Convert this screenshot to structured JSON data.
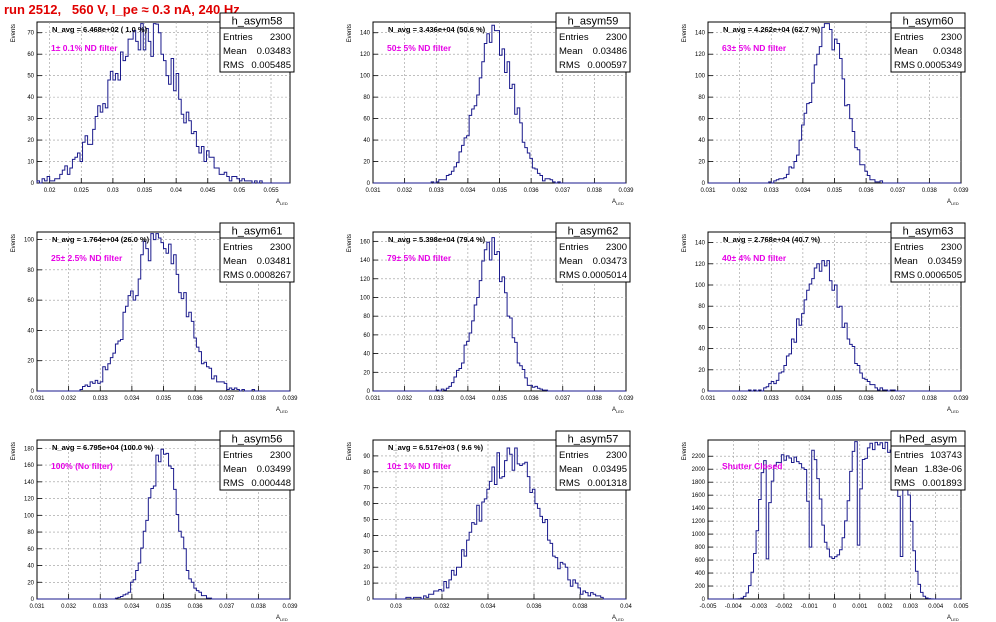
{
  "page": {
    "title": "run 2512,   560 V, I_pe ≈ 0.3 nA, 240 Hz"
  },
  "colors": {
    "histogram": "#1a1a8c",
    "annotation": "#e600e6",
    "title": "#e00000",
    "frame": "#000000"
  },
  "chart_data": [
    {
      "type": "histogram",
      "name": "h_asym58",
      "ylabel": "Events",
      "xlabel": "A",
      "xlabel_sub": "LED",
      "nominal": "N_avg = 6.468e+02 ( 1.0 %)",
      "annotation": "1± 0.1% ND filter",
      "stats": {
        "Entries": "2300",
        "Mean": "0.03483",
        "RMS": "0.005485"
      },
      "xlim": [
        0.018,
        0.058
      ],
      "ylim": [
        0,
        75
      ],
      "xticks": [
        0.02,
        0.025,
        0.03,
        0.035,
        0.04,
        0.045,
        0.05,
        0.055
      ],
      "xticklabels": [
        "0.02",
        "0.025",
        "0.03",
        "0.035",
        "0.04",
        "0.045",
        "0.05",
        "0.055"
      ],
      "yticks": [
        0,
        10,
        20,
        30,
        40,
        50,
        60,
        70
      ],
      "mean": 0.03483,
      "rms": 0.005485,
      "peak": 70
    },
    {
      "type": "histogram",
      "name": "h_asym59",
      "ylabel": "Events",
      "xlabel": "A",
      "xlabel_sub": "LED",
      "nominal": "N_avg = 3.436e+04 (50.6 %)",
      "annotation": "50± 5% ND filter",
      "stats": {
        "Entries": "2300",
        "Mean": "0.03486",
        "RMS": "0.000597"
      },
      "xlim": [
        0.031,
        0.039
      ],
      "ylim": [
        0,
        150
      ],
      "xticks": [
        0.031,
        0.032,
        0.033,
        0.034,
        0.035,
        0.036,
        0.037,
        0.038,
        0.039
      ],
      "xticklabels": [
        "0.031",
        "0.032",
        "0.033",
        "0.034",
        "0.035",
        "0.036",
        "0.037",
        "0.038",
        "0.039"
      ],
      "yticks": [
        0,
        20,
        40,
        60,
        80,
        100,
        120,
        140
      ],
      "mean": 0.03486,
      "rms": 0.000597,
      "peak": 135
    },
    {
      "type": "histogram",
      "name": "h_asym60",
      "ylabel": "Events",
      "xlabel": "A",
      "xlabel_sub": "LED",
      "nominal": "N_avg = 4.262e+04 (62.7 %)",
      "annotation": "63± 5% ND filter",
      "stats": {
        "Entries": "2300",
        "Mean": "0.0348",
        "RMS": "0.0005349"
      },
      "xlim": [
        0.031,
        0.039
      ],
      "ylim": [
        0,
        150
      ],
      "xticks": [
        0.031,
        0.032,
        0.033,
        0.034,
        0.035,
        0.036,
        0.037,
        0.038,
        0.039
      ],
      "xticklabels": [
        "0.031",
        "0.032",
        "0.033",
        "0.034",
        "0.035",
        "0.036",
        "0.037",
        "0.038",
        "0.039"
      ],
      "yticks": [
        0,
        20,
        40,
        60,
        80,
        100,
        120,
        140
      ],
      "mean": 0.0348,
      "rms": 0.0005349,
      "peak": 140
    },
    {
      "type": "histogram",
      "name": "h_asym61",
      "ylabel": "Events",
      "xlabel": "A",
      "xlabel_sub": "LED",
      "nominal": "N_avg = 1.764e+04 (26.0 %)",
      "annotation": "25± 2.5% ND filter",
      "stats": {
        "Entries": "2300",
        "Mean": "0.03481",
        "RMS": "0.0008267"
      },
      "xlim": [
        0.031,
        0.039
      ],
      "ylim": [
        0,
        105
      ],
      "xticks": [
        0.031,
        0.032,
        0.033,
        0.034,
        0.035,
        0.036,
        0.037,
        0.038,
        0.039
      ],
      "xticklabels": [
        "0.031",
        "0.032",
        "0.033",
        "0.034",
        "0.035",
        "0.036",
        "0.037",
        "0.038",
        "0.039"
      ],
      "yticks": [
        0,
        20,
        40,
        60,
        80,
        100
      ],
      "mean": 0.03481,
      "rms": 0.0008267,
      "peak": 100
    },
    {
      "type": "histogram",
      "name": "h_asym62",
      "ylabel": "Events",
      "xlabel": "A",
      "xlabel_sub": "LED",
      "nominal": "N_avg = 5.398e+04 (79.4 %)",
      "annotation": "79± 5% ND filter",
      "stats": {
        "Entries": "2300",
        "Mean": "0.03473",
        "RMS": "0.0005014"
      },
      "xlim": [
        0.031,
        0.039
      ],
      "ylim": [
        0,
        170
      ],
      "xticks": [
        0.031,
        0.032,
        0.033,
        0.034,
        0.035,
        0.036,
        0.037,
        0.038,
        0.039
      ],
      "xticklabels": [
        "0.031",
        "0.032",
        "0.033",
        "0.034",
        "0.035",
        "0.036",
        "0.037",
        "0.038",
        "0.039"
      ],
      "yticks": [
        0,
        20,
        40,
        60,
        80,
        100,
        120,
        140,
        160
      ],
      "mean": 0.03473,
      "rms": 0.0005014,
      "peak": 155
    },
    {
      "type": "histogram",
      "name": "h_asym63",
      "ylabel": "Events",
      "xlabel": "A",
      "xlabel_sub": "LED",
      "nominal": "N_avg = 2.768e+04 (40.7 %)",
      "annotation": "40± 4% ND filter",
      "stats": {
        "Entries": "2300",
        "Mean": "0.03459",
        "RMS": "0.0006505"
      },
      "xlim": [
        0.031,
        0.039
      ],
      "ylim": [
        0,
        150
      ],
      "xticks": [
        0.031,
        0.032,
        0.033,
        0.034,
        0.035,
        0.036,
        0.037,
        0.038,
        0.039
      ],
      "xticklabels": [
        "0.031",
        "0.032",
        "0.033",
        "0.034",
        "0.035",
        "0.036",
        "0.037",
        "0.038",
        "0.039"
      ],
      "yticks": [
        0,
        20,
        40,
        60,
        80,
        100,
        120,
        140
      ],
      "mean": 0.03459,
      "rms": 0.0006505,
      "peak": 120
    },
    {
      "type": "histogram",
      "name": "h_asym56",
      "ylabel": "Events",
      "xlabel": "A",
      "xlabel_sub": "LED",
      "nominal": "N_avg = 6.795e+04 (100.0 %)",
      "annotation": "100% (No filter)",
      "stats": {
        "Entries": "2300",
        "Mean": "0.03499",
        "RMS": "0.000448"
      },
      "xlim": [
        0.031,
        0.039
      ],
      "ylim": [
        0,
        190
      ],
      "xticks": [
        0.031,
        0.032,
        0.033,
        0.034,
        0.035,
        0.036,
        0.037,
        0.038,
        0.039
      ],
      "xticklabels": [
        "0.031",
        "0.032",
        "0.033",
        "0.034",
        "0.035",
        "0.036",
        "0.037",
        "0.038",
        "0.039"
      ],
      "yticks": [
        0,
        20,
        40,
        60,
        80,
        100,
        120,
        140,
        160,
        180
      ],
      "mean": 0.03499,
      "rms": 0.000448,
      "peak": 178
    },
    {
      "type": "histogram",
      "name": "h_asym57",
      "ylabel": "Events",
      "xlabel": "A",
      "xlabel_sub": "LED",
      "nominal": "N_avg = 6.517e+03 ( 9.6 %)",
      "annotation": "10± 1% ND filter",
      "stats": {
        "Entries": "2300",
        "Mean": "0.03495",
        "RMS": "0.001318"
      },
      "xlim": [
        0.029,
        0.04
      ],
      "ylim": [
        0,
        100
      ],
      "xticks": [
        0.03,
        0.032,
        0.034,
        0.036,
        0.038,
        0.04
      ],
      "xticklabels": [
        "0.03",
        "0.032",
        "0.034",
        "0.036",
        "0.038",
        "0.04"
      ],
      "yticks": [
        0,
        10,
        20,
        30,
        40,
        50,
        60,
        70,
        80,
        90
      ],
      "mean": 0.03495,
      "rms": 0.001318,
      "peak": 90
    },
    {
      "type": "histogram",
      "name": "hPed_asym",
      "ylabel": "Events",
      "xlabel": "A",
      "xlabel_sub": "LED",
      "nominal": "",
      "annotation": "Shutter Closed",
      "stats": {
        "Entries": "103743",
        "Mean": "1.83e-06",
        "RMS": "0.001893"
      },
      "xlim": [
        -0.005,
        0.005
      ],
      "ylim": [
        0,
        2450
      ],
      "xticks": [
        -0.005,
        -0.004,
        -0.003,
        -0.002,
        -0.001,
        0,
        0.001,
        0.002,
        0.003,
        0.004,
        0.005
      ],
      "xticklabels": [
        "-0.005",
        "-0.004",
        "-0.003",
        "-0.002",
        "-0.001",
        "0",
        "0.001",
        "0.002",
        "0.003",
        "0.004",
        "0.005"
      ],
      "yticks": [
        0,
        200,
        400,
        600,
        800,
        1000,
        1200,
        1400,
        1600,
        1800,
        2000,
        2200
      ],
      "double_peak": {
        "left_center": -0.0018,
        "right_center": 0.0018,
        "width": 0.0009,
        "left_peak": 2150,
        "right_peak": 2330
      },
      "mean": 1.83e-06,
      "rms": 0.001893,
      "peak": 2330
    }
  ]
}
